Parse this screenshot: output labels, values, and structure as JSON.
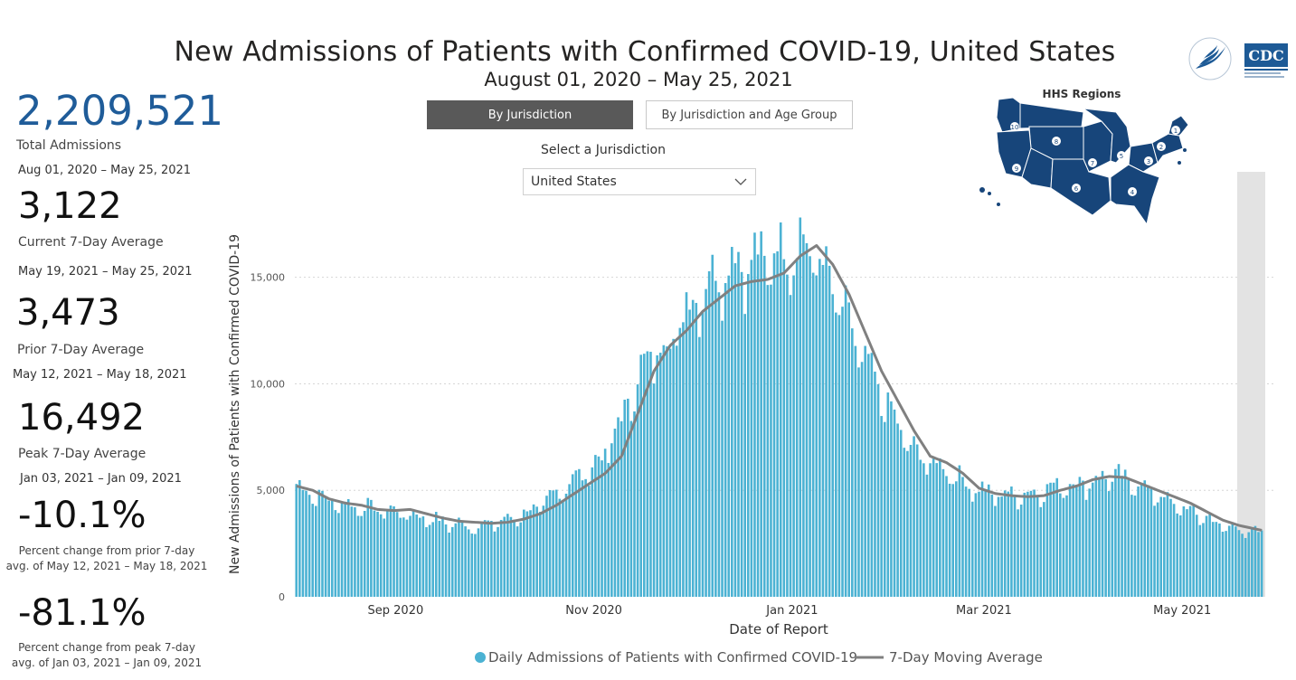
{
  "title": "New Admissions of Patients with Confirmed COVID-19, United States",
  "subtitle": "August 01, 2020 – May 25, 2021",
  "stats": {
    "total": {
      "value": "2,209,521",
      "label": "Total Admissions",
      "date": "Aug 01, 2020 – May 25, 2021"
    },
    "current": {
      "value": "3,122",
      "label": "Current 7-Day Average",
      "date": "May 19, 2021 – May 25, 2021"
    },
    "prior": {
      "value": "3,473",
      "label": "Prior 7-Day Average",
      "date": "May 12, 2021 – May 18, 2021"
    },
    "peak": {
      "value": "16,492",
      "label": "Peak 7-Day Average",
      "date": "Jan 03, 2021 – Jan 09, 2021"
    },
    "change_prior": {
      "value": "-10.1%",
      "note1": "Percent change from prior 7-day",
      "note2": "avg. of May 12, 2021 – May 18, 2021"
    },
    "change_peak": {
      "value": "-81.1%",
      "note1": "Percent change from peak 7-day",
      "note2": "avg. of Jan 03, 2021 – Jan 09, 2021"
    }
  },
  "controls": {
    "by_jurisdiction": "By Jurisdiction",
    "by_jurisdiction_age": "By Jurisdiction and Age Group",
    "select_label": "Select a Jurisdiction",
    "select_value": "United States"
  },
  "map": {
    "title": "HHS Regions",
    "region_numbers": [
      "1",
      "2",
      "3",
      "4",
      "5",
      "6",
      "7",
      "8",
      "9",
      "10"
    ]
  },
  "colors": {
    "bar": "#4bb2d3",
    "line": "#808080",
    "title_blue": "#1f5c99",
    "map_navy": "#17457a",
    "cdc_blue": "#1d5a96"
  },
  "chart_data": {
    "type": "bar",
    "xlabel": "Date of Report",
    "ylabel": "New Admissions of Patients with Confirmed COVID-19",
    "ylim": [
      0,
      18000
    ],
    "yticks": [
      0,
      5000,
      10000,
      15000
    ],
    "ytick_labels": [
      "0",
      "5,000",
      "10,000",
      "15,000"
    ],
    "xticks": [
      {
        "label": "Sep 2020",
        "day": 31
      },
      {
        "label": "Nov 2020",
        "day": 92
      },
      {
        "label": "Jan 2021",
        "day": 153
      },
      {
        "label": "Mar 2021",
        "day": 212
      },
      {
        "label": "May 2021",
        "day": 273
      }
    ],
    "start_date": "2020-08-01",
    "num_days": 298,
    "grid": "horizontal dotted",
    "shaded_region_start_day": 290,
    "legend": [
      {
        "name": "Daily Admissions of Patients with Confirmed COVID-19",
        "marker": "dot"
      },
      {
        "name": "7-Day Moving Average",
        "marker": "line"
      }
    ],
    "daily_anchors": [
      [
        0,
        5200
      ],
      [
        10,
        4500
      ],
      [
        20,
        4200
      ],
      [
        30,
        4000
      ],
      [
        40,
        3700
      ],
      [
        45,
        3500
      ],
      [
        55,
        3300
      ],
      [
        65,
        3600
      ],
      [
        75,
        4200
      ],
      [
        85,
        5500
      ],
      [
        90,
        5900
      ],
      [
        95,
        6700
      ],
      [
        100,
        8300
      ],
      [
        105,
        10200
      ],
      [
        110,
        11500
      ],
      [
        115,
        12000
      ],
      [
        120,
        13500
      ],
      [
        125,
        14500
      ],
      [
        130,
        15200
      ],
      [
        135,
        15800
      ],
      [
        140,
        15600
      ],
      [
        145,
        16000
      ],
      [
        150,
        16200
      ],
      [
        155,
        16600
      ],
      [
        160,
        16000
      ],
      [
        165,
        14500
      ],
      [
        170,
        12700
      ],
      [
        175,
        11000
      ],
      [
        180,
        9500
      ],
      [
        185,
        8000
      ],
      [
        190,
        6800
      ],
      [
        195,
        6300
      ],
      [
        200,
        6000
      ],
      [
        205,
        5400
      ],
      [
        210,
        5000
      ],
      [
        215,
        4800
      ],
      [
        225,
        4800
      ],
      [
        235,
        5200
      ],
      [
        245,
        5400
      ],
      [
        250,
        5700
      ],
      [
        255,
        5500
      ],
      [
        260,
        5200
      ],
      [
        265,
        4800
      ],
      [
        270,
        4300
      ],
      [
        275,
        4000
      ],
      [
        280,
        3700
      ],
      [
        285,
        3300
      ],
      [
        290,
        3200
      ],
      [
        297,
        2900
      ]
    ],
    "moving_avg_anchors": [
      [
        0,
        5200
      ],
      [
        5,
        5000
      ],
      [
        10,
        4600
      ],
      [
        15,
        4400
      ],
      [
        20,
        4300
      ],
      [
        25,
        4100
      ],
      [
        30,
        4050
      ],
      [
        35,
        4100
      ],
      [
        40,
        3900
      ],
      [
        45,
        3700
      ],
      [
        50,
        3550
      ],
      [
        55,
        3500
      ],
      [
        60,
        3450
      ],
      [
        65,
        3500
      ],
      [
        70,
        3650
      ],
      [
        75,
        3900
      ],
      [
        80,
        4300
      ],
      [
        85,
        4800
      ],
      [
        90,
        5300
      ],
      [
        95,
        5800
      ],
      [
        100,
        6600
      ],
      [
        105,
        8600
      ],
      [
        110,
        10600
      ],
      [
        115,
        11800
      ],
      [
        120,
        12500
      ],
      [
        125,
        13400
      ],
      [
        130,
        14000
      ],
      [
        135,
        14600
      ],
      [
        140,
        14800
      ],
      [
        145,
        14900
      ],
      [
        150,
        15200
      ],
      [
        155,
        16000
      ],
      [
        160,
        16492
      ],
      [
        165,
        15600
      ],
      [
        170,
        14200
      ],
      [
        175,
        12400
      ],
      [
        180,
        10600
      ],
      [
        185,
        9200
      ],
      [
        190,
        7800
      ],
      [
        195,
        6600
      ],
      [
        200,
        6300
      ],
      [
        205,
        5800
      ],
      [
        210,
        5100
      ],
      [
        215,
        4850
      ],
      [
        220,
        4750
      ],
      [
        225,
        4700
      ],
      [
        230,
        4750
      ],
      [
        235,
        5000
      ],
      [
        240,
        5200
      ],
      [
        245,
        5500
      ],
      [
        250,
        5650
      ],
      [
        255,
        5600
      ],
      [
        260,
        5300
      ],
      [
        265,
        5000
      ],
      [
        270,
        4700
      ],
      [
        275,
        4400
      ],
      [
        280,
        4000
      ],
      [
        285,
        3600
      ],
      [
        290,
        3350
      ],
      [
        297,
        3122
      ]
    ]
  }
}
